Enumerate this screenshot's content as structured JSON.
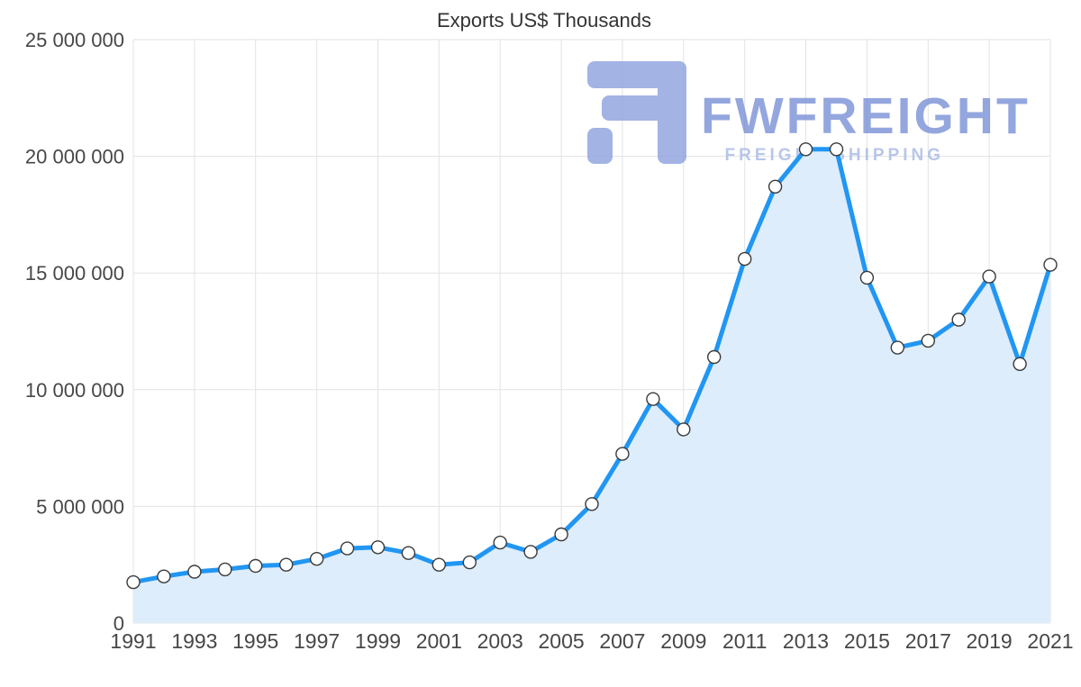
{
  "title": "Exports US$ Thousands",
  "watermark": {
    "brand": "FWFREIGHT",
    "tagline": "FREIGHT SHIPPING"
  },
  "colors": {
    "line": "#2196f3",
    "area": "#ddedfb",
    "marker_fill": "#ffffff",
    "marker_stroke": "#3a3a3a",
    "grid": "#e3e3e3",
    "watermark_logo": "#8ca1de",
    "watermark_text": "#7a90d6",
    "watermark_tagline": "#a8b9e6"
  },
  "chart_data": {
    "type": "area",
    "title": "Exports US$ Thousands",
    "xlabel": "",
    "ylabel": "",
    "x": [
      1991,
      1992,
      1993,
      1994,
      1995,
      1996,
      1997,
      1998,
      1999,
      2000,
      2001,
      2002,
      2003,
      2004,
      2005,
      2006,
      2007,
      2008,
      2009,
      2010,
      2011,
      2012,
      2013,
      2014,
      2015,
      2016,
      2017,
      2018,
      2019,
      2020,
      2021
    ],
    "values": [
      1750000,
      2000000,
      2200000,
      2300000,
      2450000,
      2500000,
      2750000,
      3200000,
      3250000,
      3000000,
      2500000,
      2600000,
      3450000,
      3050000,
      3800000,
      5100000,
      7250000,
      9600000,
      8300000,
      11400000,
      15600000,
      18700000,
      20300000,
      20300000,
      14800000,
      11800000,
      12100000,
      13000000,
      14850000,
      11100000,
      15350000
    ],
    "ylim": [
      0,
      25000000
    ],
    "y_ticks": [
      0,
      5000000,
      10000000,
      15000000,
      20000000,
      25000000
    ],
    "y_tick_labels": [
      "0",
      "5 000 000",
      "10 000 000",
      "15 000 000",
      "20 000 000",
      "25 000 000"
    ],
    "x_tick_years": [
      1991,
      1993,
      1995,
      1997,
      1999,
      2001,
      2003,
      2005,
      2007,
      2009,
      2011,
      2013,
      2015,
      2017,
      2019,
      2021
    ],
    "grid": true,
    "legend": "none"
  }
}
